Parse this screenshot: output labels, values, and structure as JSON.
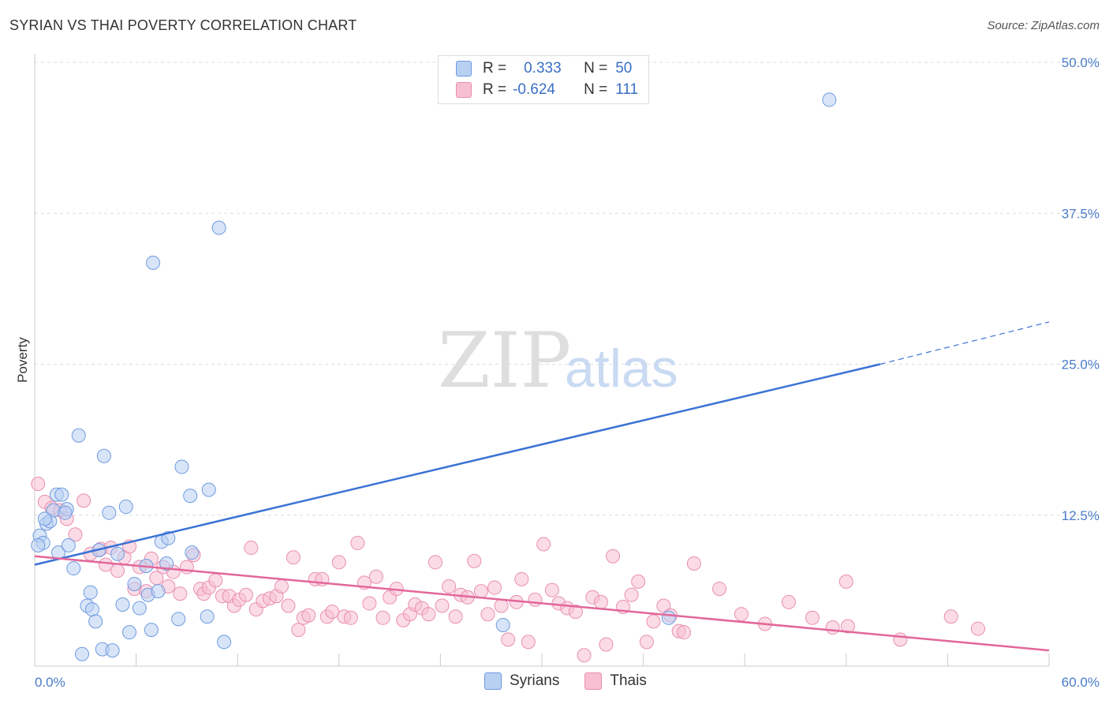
{
  "header": {
    "title": "SYRIAN VS THAI POVERTY CORRELATION CHART",
    "source": "Source: ZipAtlas.com"
  },
  "watermark": {
    "left": "ZIP",
    "right": "atlas"
  },
  "legend": {
    "rows": [
      {
        "r_label": "R =",
        "r_value": "0.333",
        "n_label": "N =",
        "n_value": "50"
      },
      {
        "r_label": "R =",
        "r_value": "-0.624",
        "n_label": "N =",
        "n_value": "111"
      }
    ]
  },
  "bottom_legend": {
    "items": [
      "Syrians",
      "Thais"
    ]
  },
  "colors": {
    "syrian_fill": "#b8d0f2",
    "syrian_stroke": "#6f9be0",
    "syrian_line": "#3a72d6",
    "thai_fill": "#f7bfd1",
    "thai_stroke": "#e98fb0",
    "thai_line": "#e2679a",
    "grid": "#dddddd",
    "tick_text": "#4a7cc9"
  },
  "chart_data": {
    "type": "scatter",
    "title": "SYRIAN VS THAI POVERTY CORRELATION CHART",
    "xlabel": "",
    "ylabel": "Poverty",
    "xlim": [
      0,
      60
    ],
    "ylim": [
      0,
      50
    ],
    "x_tick_labels": [
      "0.0%",
      "60.0%"
    ],
    "y_ticks": [
      12.5,
      25,
      37.5,
      50
    ],
    "y_tick_labels": [
      "12.5%",
      "25.0%",
      "37.5%",
      "50.0%"
    ],
    "grid": true,
    "series": [
      {
        "name": "Syrians",
        "r": 0.333,
        "n": 50,
        "trend": {
          "x_start": 0,
          "y_start": 8.4,
          "x_solid_end": 50,
          "y_solid_end": 25.0,
          "x_dash_end": 60,
          "y_dash_end": 28.5
        },
        "points": [
          [
            0.3,
            10.8
          ],
          [
            0.5,
            10.2
          ],
          [
            0.7,
            11.8
          ],
          [
            0.9,
            12.0
          ],
          [
            1.1,
            12.9
          ],
          [
            1.3,
            14.2
          ],
          [
            1.4,
            9.4
          ],
          [
            1.6,
            14.2
          ],
          [
            1.9,
            13.0
          ],
          [
            2.0,
            10.0
          ],
          [
            2.3,
            8.1
          ],
          [
            2.6,
            19.1
          ],
          [
            2.8,
            1.0
          ],
          [
            3.1,
            5.0
          ],
          [
            3.3,
            6.1
          ],
          [
            3.4,
            4.7
          ],
          [
            3.6,
            3.7
          ],
          [
            3.8,
            9.6
          ],
          [
            4.0,
            1.4
          ],
          [
            4.1,
            17.4
          ],
          [
            4.4,
            12.7
          ],
          [
            4.6,
            1.3
          ],
          [
            4.9,
            9.3
          ],
          [
            5.2,
            5.1
          ],
          [
            5.4,
            13.2
          ],
          [
            5.6,
            2.8
          ],
          [
            5.9,
            6.8
          ],
          [
            6.2,
            4.8
          ],
          [
            6.6,
            8.3
          ],
          [
            6.7,
            5.9
          ],
          [
            6.9,
            3.0
          ],
          [
            7.0,
            33.4
          ],
          [
            7.3,
            6.2
          ],
          [
            7.5,
            10.3
          ],
          [
            7.8,
            8.5
          ],
          [
            7.9,
            10.6
          ],
          [
            8.5,
            3.9
          ],
          [
            8.7,
            16.5
          ],
          [
            9.2,
            14.1
          ],
          [
            9.3,
            9.4
          ],
          [
            10.2,
            4.1
          ],
          [
            10.3,
            14.6
          ],
          [
            10.9,
            36.3
          ],
          [
            11.2,
            2.0
          ],
          [
            27.7,
            3.4
          ],
          [
            37.5,
            4.0
          ],
          [
            47.0,
            46.9
          ],
          [
            0.2,
            10.0
          ],
          [
            0.6,
            12.2
          ],
          [
            1.8,
            12.7
          ]
        ]
      },
      {
        "name": "Thais",
        "r": -0.624,
        "n": 111,
        "trend": {
          "x_start": 0,
          "y_start": 9.1,
          "x_end": 60,
          "y_end": 1.3
        },
        "points": [
          [
            0.2,
            15.1
          ],
          [
            0.6,
            13.6
          ],
          [
            1.0,
            13.1
          ],
          [
            1.5,
            12.9
          ],
          [
            1.9,
            12.2
          ],
          [
            2.4,
            10.9
          ],
          [
            2.9,
            13.7
          ],
          [
            3.3,
            9.3
          ],
          [
            3.9,
            9.7
          ],
          [
            4.2,
            8.4
          ],
          [
            4.5,
            9.8
          ],
          [
            4.9,
            7.9
          ],
          [
            5.3,
            9.0
          ],
          [
            5.6,
            9.9
          ],
          [
            5.9,
            6.4
          ],
          [
            6.2,
            8.2
          ],
          [
            6.6,
            6.2
          ],
          [
            6.9,
            8.9
          ],
          [
            7.2,
            7.3
          ],
          [
            7.6,
            8.2
          ],
          [
            7.9,
            6.6
          ],
          [
            8.2,
            7.8
          ],
          [
            8.6,
            6.0
          ],
          [
            9.0,
            8.2
          ],
          [
            9.4,
            9.2
          ],
          [
            9.8,
            6.4
          ],
          [
            10.0,
            6.0
          ],
          [
            10.3,
            6.5
          ],
          [
            10.7,
            7.1
          ],
          [
            11.1,
            5.8
          ],
          [
            11.5,
            5.8
          ],
          [
            11.8,
            5.0
          ],
          [
            12.1,
            5.5
          ],
          [
            12.5,
            5.9
          ],
          [
            12.8,
            9.8
          ],
          [
            13.1,
            4.7
          ],
          [
            13.5,
            5.4
          ],
          [
            13.9,
            5.6
          ],
          [
            14.3,
            5.8
          ],
          [
            14.6,
            6.6
          ],
          [
            15.0,
            5.0
          ],
          [
            15.3,
            9.0
          ],
          [
            15.6,
            3.0
          ],
          [
            15.9,
            4.0
          ],
          [
            16.2,
            4.2
          ],
          [
            16.6,
            7.2
          ],
          [
            17.0,
            7.2
          ],
          [
            17.3,
            4.1
          ],
          [
            17.6,
            4.5
          ],
          [
            18.0,
            8.6
          ],
          [
            18.3,
            4.1
          ],
          [
            18.7,
            4.0
          ],
          [
            19.1,
            10.2
          ],
          [
            19.5,
            6.9
          ],
          [
            19.8,
            5.2
          ],
          [
            20.2,
            7.4
          ],
          [
            20.6,
            4.0
          ],
          [
            21.0,
            5.7
          ],
          [
            21.4,
            6.4
          ],
          [
            21.8,
            3.8
          ],
          [
            22.2,
            4.3
          ],
          [
            22.5,
            5.1
          ],
          [
            22.9,
            4.8
          ],
          [
            23.3,
            4.3
          ],
          [
            23.7,
            8.6
          ],
          [
            24.1,
            5.0
          ],
          [
            24.5,
            6.6
          ],
          [
            24.9,
            4.1
          ],
          [
            25.2,
            5.9
          ],
          [
            25.6,
            5.7
          ],
          [
            26.0,
            8.7
          ],
          [
            26.4,
            6.2
          ],
          [
            26.8,
            4.3
          ],
          [
            27.2,
            6.5
          ],
          [
            27.6,
            5.0
          ],
          [
            28.0,
            2.2
          ],
          [
            28.5,
            5.3
          ],
          [
            28.8,
            7.2
          ],
          [
            29.2,
            2.0
          ],
          [
            29.6,
            5.5
          ],
          [
            30.1,
            10.1
          ],
          [
            30.6,
            6.3
          ],
          [
            31.0,
            5.2
          ],
          [
            31.5,
            4.8
          ],
          [
            32.0,
            4.5
          ],
          [
            32.5,
            0.9
          ],
          [
            33.0,
            5.7
          ],
          [
            33.5,
            5.3
          ],
          [
            33.8,
            1.8
          ],
          [
            34.2,
            9.1
          ],
          [
            34.8,
            4.9
          ],
          [
            35.3,
            5.9
          ],
          [
            35.7,
            7.0
          ],
          [
            36.2,
            2.0
          ],
          [
            36.6,
            3.7
          ],
          [
            37.2,
            5.0
          ],
          [
            37.6,
            4.2
          ],
          [
            38.1,
            2.9
          ],
          [
            38.4,
            2.8
          ],
          [
            39.0,
            8.5
          ],
          [
            40.5,
            6.4
          ],
          [
            41.8,
            4.3
          ],
          [
            43.2,
            3.5
          ],
          [
            44.6,
            5.3
          ],
          [
            46.0,
            4.0
          ],
          [
            47.2,
            3.2
          ],
          [
            48.0,
            7.0
          ],
          [
            48.1,
            3.3
          ],
          [
            51.2,
            2.2
          ],
          [
            54.2,
            4.1
          ],
          [
            55.8,
            3.1
          ]
        ]
      }
    ]
  }
}
